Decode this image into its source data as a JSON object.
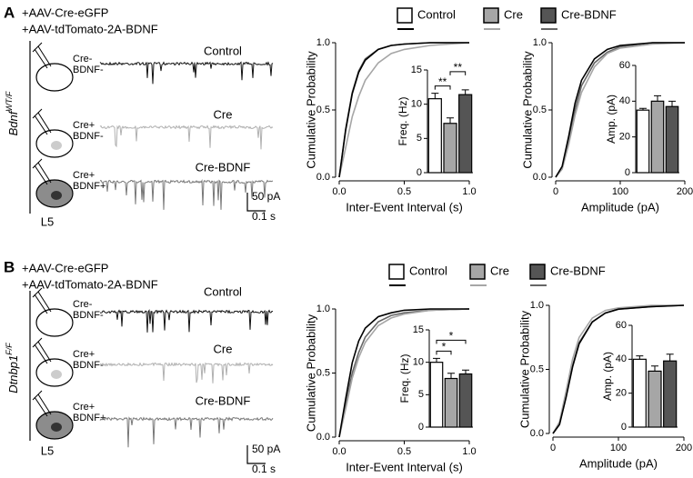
{
  "panels": [
    {
      "label": "A",
      "constructs": [
        "+AAV-Cre-eGFP",
        "+AAV-tdTomato-2A-BDNF"
      ],
      "genotype": {
        "gene": "Bdnf",
        "allele": "WT/F"
      },
      "cells": [
        [
          "Cre-",
          "BDNF-"
        ],
        [
          "Cre+",
          "BDNF-"
        ],
        [
          "Cre+",
          "BDNF+"
        ]
      ],
      "region": "L5",
      "traces": [
        "Control",
        "Cre",
        "Cre-BDNF"
      ],
      "scale": [
        "50 pA",
        "0.1 s"
      ]
    },
    {
      "label": "B",
      "constructs": [
        "+AAV-Cre-eGFP",
        "+AAV-tdTomato-2A-BDNF"
      ],
      "genotype": {
        "gene": "Dtnbp1",
        "allele": "F/F"
      },
      "cells": [
        [
          "Cre-",
          "BDNF-"
        ],
        [
          "Cre+",
          "BDNF-"
        ],
        [
          "Cre+",
          "BDNF+"
        ]
      ],
      "region": "L5",
      "traces": [
        "Control",
        "Cre",
        "Cre-BDNF"
      ],
      "scale": [
        "50 pA",
        "0.1 s"
      ]
    }
  ],
  "chart_data": [
    {
      "type": "line",
      "xlabel": "Inter-Event Interval (s)",
      "ylabel": "Cumulative Probability",
      "xlim": [
        0,
        1
      ],
      "xticks": [
        {
          "value": 0,
          "label": "0.0"
        },
        {
          "value": 0.5,
          "label": "0.5"
        },
        {
          "value": 1,
          "label": "1.0"
        }
      ],
      "ylim": [
        0,
        1
      ],
      "yticks": [
        {
          "value": 0,
          "label": "0.0"
        },
        {
          "value": 0.5,
          "label": "0.5"
        },
        {
          "value": 1,
          "label": "1.0"
        }
      ],
      "x": [
        0,
        0.05,
        0.1,
        0.15,
        0.2,
        0.3,
        0.4,
        0.5,
        0.7,
        1
      ],
      "series": [
        {
          "name": "Control",
          "color": "#000000",
          "values": [
            0,
            0.35,
            0.62,
            0.78,
            0.87,
            0.95,
            0.98,
            0.99,
            1,
            1
          ]
        },
        {
          "name": "Cre",
          "color": "#a6a6a6",
          "values": [
            0,
            0.22,
            0.45,
            0.6,
            0.72,
            0.85,
            0.92,
            0.95,
            0.98,
            1
          ]
        },
        {
          "name": "Cre-BDNF",
          "color": "#666666",
          "values": [
            0,
            0.36,
            0.63,
            0.79,
            0.88,
            0.95,
            0.98,
            0.99,
            1,
            1
          ]
        }
      ]
    },
    {
      "type": "bar",
      "ylabel": "Freq. (Hz)",
      "ylim": [
        0,
        15
      ],
      "yticks": [
        0,
        5,
        10,
        15
      ],
      "values": [
        10.8,
        7.2,
        11.4
      ],
      "errors": [
        0.8,
        0.8,
        0.7
      ],
      "colors": [
        "#ffffff",
        "#a6a6a6",
        "#555555"
      ],
      "significance": [
        {
          "from": 0,
          "to": 1,
          "label": "**"
        },
        {
          "from": 1,
          "to": 2,
          "label": "**"
        }
      ]
    },
    {
      "type": "line",
      "xlabel": "Amplitude (pA)",
      "ylabel": "Cumulative Probability",
      "xlim": [
        0,
        200
      ],
      "xticks": [
        0,
        100,
        200
      ],
      "ylim": [
        0,
        1
      ],
      "yticks": [
        {
          "value": 0,
          "label": "0.0"
        },
        {
          "value": 0.5,
          "label": "0.5"
        },
        {
          "value": 1,
          "label": "1.0"
        }
      ],
      "x": [
        0,
        10,
        20,
        30,
        40,
        60,
        80,
        100,
        150,
        200
      ],
      "series": [
        {
          "name": "Control",
          "color": "#000000",
          "values": [
            0,
            0.08,
            0.3,
            0.55,
            0.72,
            0.88,
            0.95,
            0.98,
            1,
            1
          ]
        },
        {
          "name": "Cre",
          "color": "#a6a6a6",
          "values": [
            0,
            0.06,
            0.24,
            0.46,
            0.63,
            0.82,
            0.92,
            0.96,
            0.99,
            1
          ]
        },
        {
          "name": "Cre-BDNF",
          "color": "#666666",
          "values": [
            0,
            0.07,
            0.27,
            0.5,
            0.68,
            0.85,
            0.93,
            0.97,
            1,
            1
          ]
        }
      ]
    },
    {
      "type": "bar",
      "ylabel": "Amp. (pA)",
      "ylim": [
        0,
        60
      ],
      "yticks": [
        0,
        20,
        40,
        60
      ],
      "values": [
        35,
        40,
        37
      ],
      "errors": [
        1,
        3,
        3
      ],
      "colors": [
        "#ffffff",
        "#a6a6a6",
        "#555555"
      ],
      "significance": []
    },
    {
      "type": "line",
      "xlabel": "Inter-Event Interval (s)",
      "ylabel": "Cumulative Probability",
      "xlim": [
        0,
        1
      ],
      "xticks": [
        {
          "value": 0,
          "label": "0.0"
        },
        {
          "value": 0.5,
          "label": "0.5"
        },
        {
          "value": 1,
          "label": "1.0"
        }
      ],
      "ylim": [
        0,
        1
      ],
      "yticks": [
        {
          "value": 0,
          "label": "0.0"
        },
        {
          "value": 0.5,
          "label": "0.5"
        },
        {
          "value": 1,
          "label": "1.0"
        }
      ],
      "x": [
        0,
        0.05,
        0.1,
        0.15,
        0.2,
        0.3,
        0.4,
        0.5,
        0.7,
        1
      ],
      "series": [
        {
          "name": "Control",
          "color": "#000000",
          "values": [
            0,
            0.3,
            0.58,
            0.75,
            0.85,
            0.94,
            0.97,
            0.99,
            1,
            1
          ]
        },
        {
          "name": "Cre",
          "color": "#a6a6a6",
          "values": [
            0,
            0.22,
            0.46,
            0.62,
            0.74,
            0.87,
            0.93,
            0.96,
            0.99,
            1
          ]
        },
        {
          "name": "Cre-BDNF",
          "color": "#666666",
          "values": [
            0,
            0.25,
            0.5,
            0.66,
            0.78,
            0.9,
            0.95,
            0.97,
            0.99,
            1
          ]
        }
      ]
    },
    {
      "type": "bar",
      "ylabel": "Freq. (Hz)",
      "ylim": [
        0,
        15
      ],
      "yticks": [
        0,
        5,
        10,
        15
      ],
      "values": [
        10,
        7.5,
        8.2
      ],
      "errors": [
        0.6,
        0.8,
        0.6
      ],
      "colors": [
        "#ffffff",
        "#a6a6a6",
        "#555555"
      ],
      "significance": [
        {
          "from": 0,
          "to": 1,
          "label": "*"
        },
        {
          "from": 0,
          "to": 2,
          "label": "*"
        }
      ]
    },
    {
      "type": "line",
      "xlabel": "Amplitude (pA)",
      "ylabel": "Cumulative Probability",
      "xlim": [
        0,
        200
      ],
      "xticks": [
        0,
        100,
        200
      ],
      "ylim": [
        0,
        1
      ],
      "yticks": [
        {
          "value": 0,
          "label": "0.0"
        },
        {
          "value": 0.5,
          "label": "0.5"
        },
        {
          "value": 1,
          "label": "1.0"
        }
      ],
      "x": [
        0,
        10,
        20,
        30,
        40,
        60,
        80,
        100,
        150,
        200
      ],
      "series": [
        {
          "name": "Control",
          "color": "#000000",
          "values": [
            0,
            0.07,
            0.28,
            0.52,
            0.7,
            0.87,
            0.94,
            0.97,
            0.99,
            1
          ]
        },
        {
          "name": "Cre",
          "color": "#a6a6a6",
          "values": [
            0,
            0.09,
            0.33,
            0.58,
            0.75,
            0.9,
            0.96,
            0.98,
            1,
            1
          ]
        },
        {
          "name": "Cre-BDNF",
          "color": "#666666",
          "values": [
            0,
            0.07,
            0.29,
            0.53,
            0.71,
            0.87,
            0.94,
            0.97,
            0.99,
            1
          ]
        }
      ]
    },
    {
      "type": "bar",
      "ylabel": "Amp. (pA)",
      "ylim": [
        0,
        60
      ],
      "yticks": [
        0,
        20,
        40,
        60
      ],
      "values": [
        40,
        33,
        39
      ],
      "errors": [
        2,
        3,
        4
      ],
      "colors": [
        "#ffffff",
        "#a6a6a6",
        "#555555"
      ],
      "significance": []
    }
  ]
}
